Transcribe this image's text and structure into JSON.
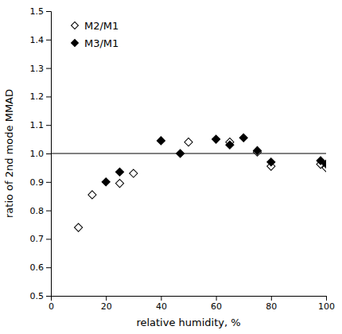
{
  "chart_data": {
    "type": "scatter",
    "xlabel": "relative humidity, %",
    "ylabel": "ratio of 2nd mode MMAD",
    "series": [
      {
        "name": "M2/M1",
        "color": "white",
        "marker": "diamond",
        "x": [
          10,
          15,
          25,
          30,
          50,
          65,
          75,
          80,
          98,
          100
        ],
        "values": [
          0.74,
          0.855,
          0.895,
          0.93,
          1.04,
          1.04,
          1.005,
          0.955,
          0.962,
          0.95
        ]
      },
      {
        "name": "M3/M1",
        "color": "black",
        "marker": "diamond",
        "x": [
          20,
          25,
          40,
          47,
          60,
          65,
          70,
          75,
          80,
          98,
          100
        ],
        "values": [
          0.9,
          0.935,
          1.045,
          1.0,
          1.05,
          1.03,
          1.055,
          1.01,
          0.97,
          0.975,
          0.963
        ]
      }
    ],
    "hline_y": 1.0,
    "xlim": [
      0,
      100
    ],
    "ylim": [
      0.5,
      1.5
    ],
    "xticks": [
      0,
      20,
      40,
      60,
      80,
      100
    ],
    "yticks": [
      0.5,
      0.6,
      0.7,
      0.8,
      0.9,
      {
        "value": 1.0,
        "label": "1.0"
      },
      1.1,
      1.2,
      1.3,
      1.4,
      1.5
    ],
    "legend": "upper left"
  }
}
